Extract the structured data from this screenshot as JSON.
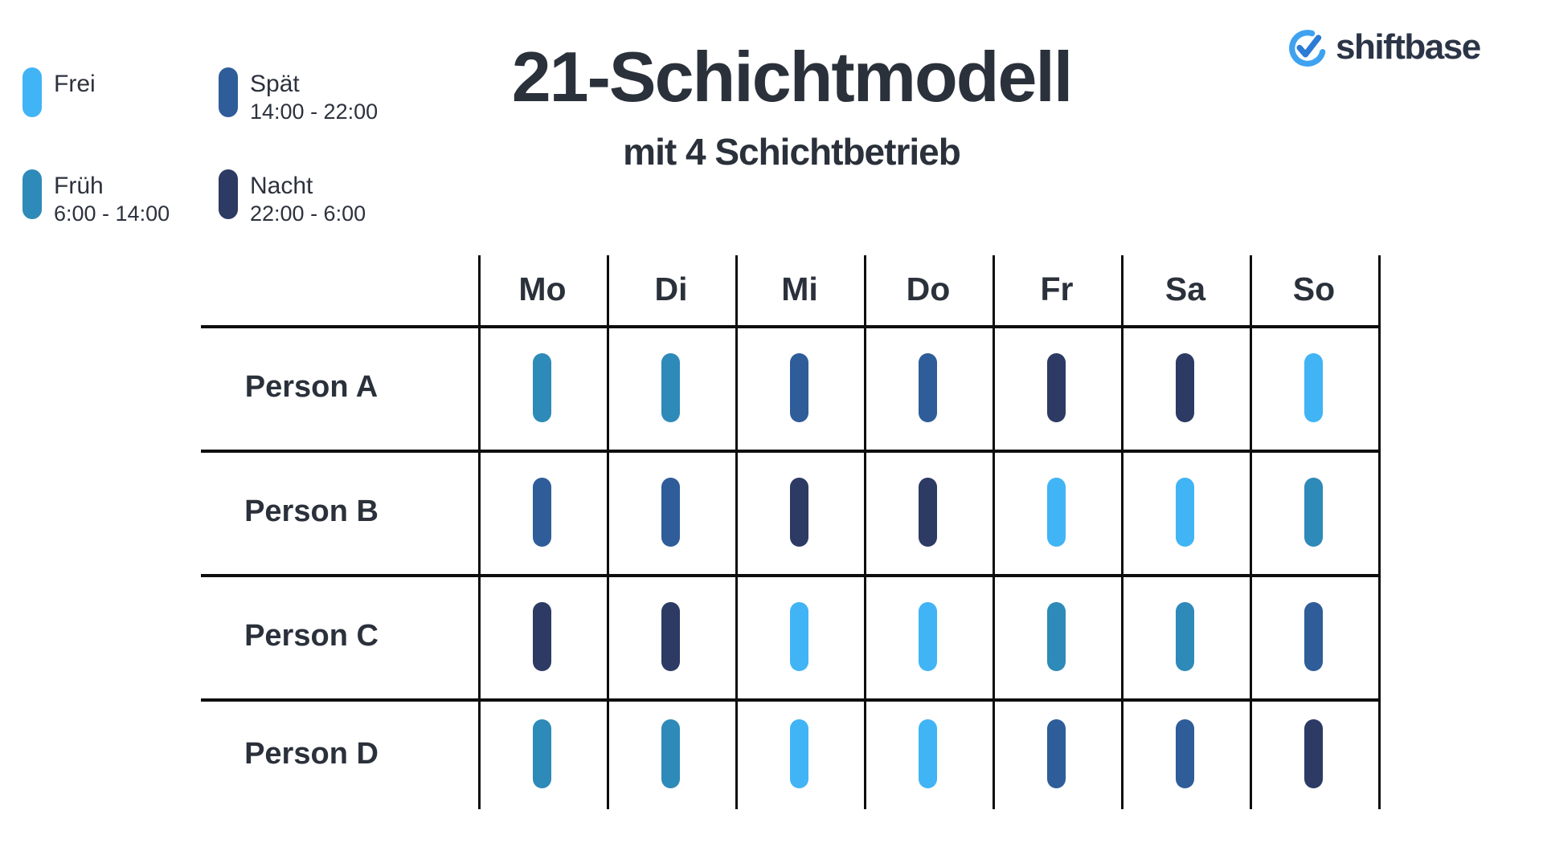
{
  "header": {
    "title": "21-Schichtmodell",
    "subtitle": "mit 4 Schichtbetrieb"
  },
  "logo": {
    "text": "shiftbase",
    "mark_ring_color": "#3fa2f0",
    "mark_check_color": "#2c7bd4",
    "text_color": "#2c3547"
  },
  "legend": {
    "items": [
      {
        "id": "frei",
        "label": "Frei",
        "time": "",
        "color": "#41b4f5"
      },
      {
        "id": "frueh",
        "label": "Früh",
        "time": "6:00 - 14:00",
        "color": "#2e8ab8"
      },
      {
        "id": "spaet",
        "label": "Spät",
        "time": "14:00 - 22:00",
        "color": "#2e5d99"
      },
      {
        "id": "nacht",
        "label": "Nacht",
        "time": "22:00 - 6:00",
        "color": "#2c3a64"
      }
    ]
  },
  "schedule": {
    "days": [
      "Mo",
      "Di",
      "Mi",
      "Do",
      "Fr",
      "Sa",
      "So"
    ],
    "rows": [
      {
        "person": "Person A",
        "shifts": [
          "frueh",
          "frueh",
          "spaet",
          "spaet",
          "nacht",
          "nacht",
          "frei"
        ]
      },
      {
        "person": "Person B",
        "shifts": [
          "spaet",
          "spaet",
          "nacht",
          "nacht",
          "frei",
          "frei",
          "frueh"
        ]
      },
      {
        "person": "Person C",
        "shifts": [
          "nacht",
          "nacht",
          "frei",
          "frei",
          "frueh",
          "frueh",
          "spaet"
        ]
      },
      {
        "person": "Person D",
        "shifts": [
          "frueh",
          "frueh",
          "frei",
          "frei",
          "spaet",
          "spaet",
          "nacht"
        ]
      }
    ]
  },
  "colors": {
    "ink": "#2b313b",
    "grid_line": "#0e0e0e",
    "background": "#ffffff"
  }
}
